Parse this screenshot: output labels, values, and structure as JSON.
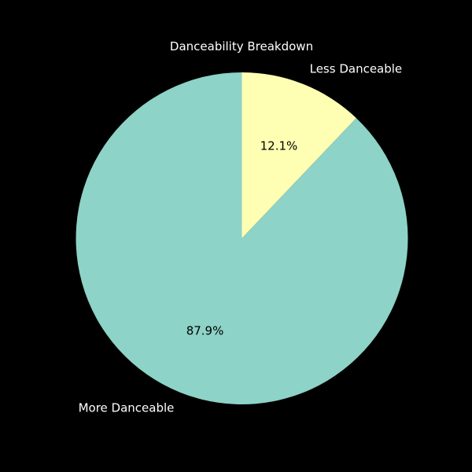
{
  "chart_data": {
    "type": "pie",
    "title": "Danceability Breakdown",
    "labels": [
      "Less Danceable",
      "More Danceable"
    ],
    "values": [
      12.1,
      87.9
    ],
    "percent_labels": [
      "12.1%",
      "87.9%"
    ],
    "colors": [
      "#ffffb3",
      "#8dd3c7"
    ],
    "start_angle_deg": 90,
    "direction": "clockwise",
    "legend": "none"
  },
  "theme": {
    "background": "#000000",
    "text_color": "#ffffff",
    "pct_text_color": "#000000"
  }
}
